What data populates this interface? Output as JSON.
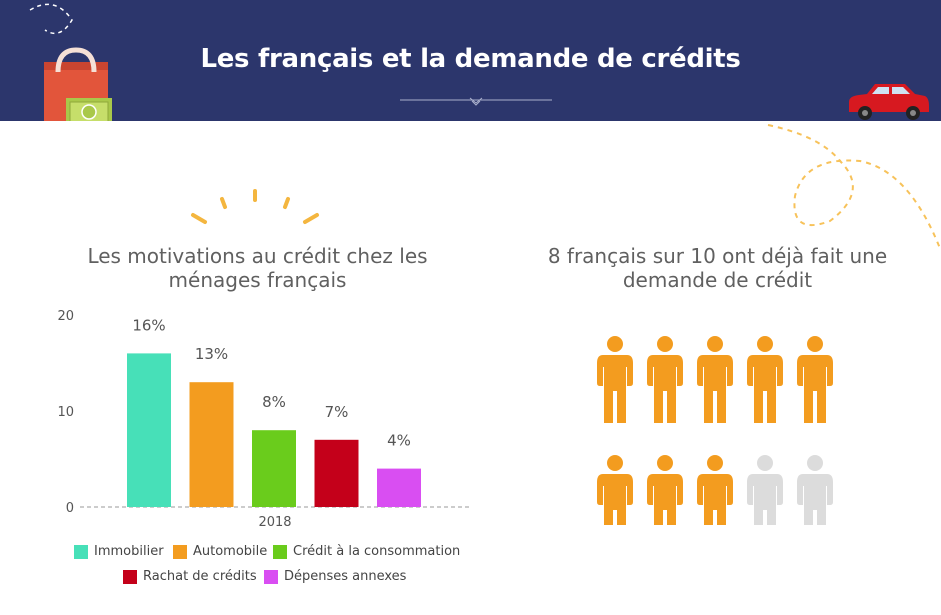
{
  "header": {
    "title": "Les français et la demande de crédits",
    "background": "#2c366c"
  },
  "left_panel": {
    "subtitle_line1": "Les motivations au crédit chez les",
    "subtitle_line2": "ménages français"
  },
  "right_panel": {
    "subtitle_line1": "8 français sur 10 ont déjà fait une",
    "subtitle_line2": "demande de crédit",
    "people_total": 10,
    "people_highlighted": 8,
    "highlight_color": "#f39c1f",
    "inactive_color": "#dcdcdc"
  },
  "chart_data": {
    "type": "bar",
    "categories": [
      "2018"
    ],
    "ylim": [
      0,
      20
    ],
    "yticks": [
      "0",
      "10",
      "20"
    ],
    "series": [
      {
        "name": "Immobilier",
        "value": 16,
        "label": "16%",
        "color": "#47e0b8"
      },
      {
        "name": "Automobile",
        "value": 13,
        "label": "13%",
        "color": "#f39c1f"
      },
      {
        "name": "Crédit à la consommation",
        "value": 8,
        "label": "8%",
        "color": "#6acc1c"
      },
      {
        "name": "Rachat de crédits",
        "value": 7,
        "label": "7%",
        "color": "#c4001a"
      },
      {
        "name": "Dépenses annexes",
        "value": 4,
        "label": "4%",
        "color": "#d94ef2"
      }
    ],
    "legend_position": "bottom",
    "grid": false
  }
}
